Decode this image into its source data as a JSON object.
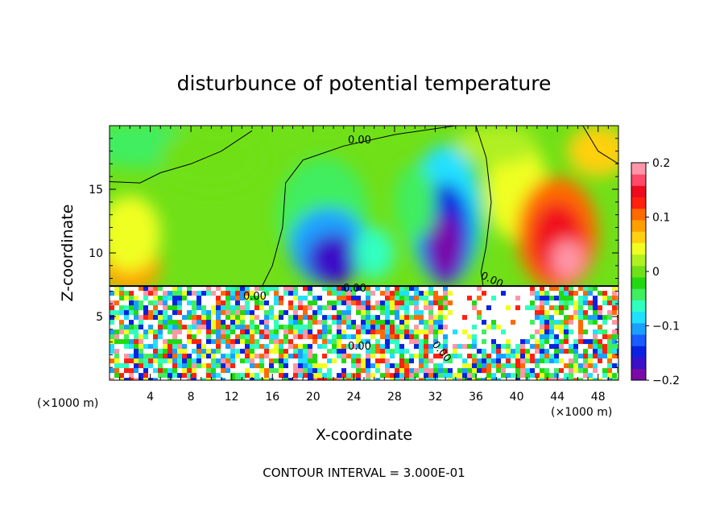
{
  "chart_data": {
    "type": "heatmap",
    "title": "disturbunce of potential temperature",
    "xlabel": "X-coordinate",
    "ylabel": "Z-coordinate",
    "x_unit": "(×1000 m)",
    "y_unit": "(×1000 m)",
    "xlim": [
      0,
      50
    ],
    "ylim": [
      0,
      20
    ],
    "x_ticks": [
      4,
      8,
      12,
      16,
      20,
      24,
      28,
      32,
      36,
      40,
      44,
      48
    ],
    "y_ticks": [
      5,
      10,
      15
    ],
    "colorbar": {
      "range": [
        -0.2,
        0.2
      ],
      "tick_values": [
        0.2,
        0.1,
        0,
        -0.1,
        -0.2
      ],
      "tick_labels": [
        "0.2",
        "0.1",
        "0",
        "−0.1",
        "−0.2"
      ],
      "colors": [
        "#7a0aa8",
        "#3a10c8",
        "#0a22e0",
        "#1a5cff",
        "#1aa0ff",
        "#20e0ff",
        "#30ffc0",
        "#40ee60",
        "#22d812",
        "#70e018",
        "#b0f020",
        "#f0ff20",
        "#ffd010",
        "#ffa000",
        "#ff6a00",
        "#ff2010",
        "#f00a1e",
        "#ff4a6a",
        "#ff96a8"
      ]
    },
    "contour_interval_label": "CONTOUR INTERVAL = 3.000E-01",
    "contour_labels": [
      "0.00",
      "0.00",
      "0.00",
      "0.00",
      "0.00",
      "0.00"
    ],
    "upper_field_anomalies": [
      {
        "x": 10,
        "z": 14,
        "value": 0.02
      },
      {
        "x": 22,
        "z": 10.5,
        "value": -0.13
      },
      {
        "x": 33,
        "z": 11.5,
        "value": -0.18
      },
      {
        "x": 44,
        "z": 11,
        "value": 0.16
      },
      {
        "x": 2,
        "z": 10,
        "value": 0.1
      },
      {
        "x": 3,
        "z": 18.5,
        "value": -0.05
      },
      {
        "x": 48,
        "z": 18,
        "value": 0.07
      }
    ]
  }
}
